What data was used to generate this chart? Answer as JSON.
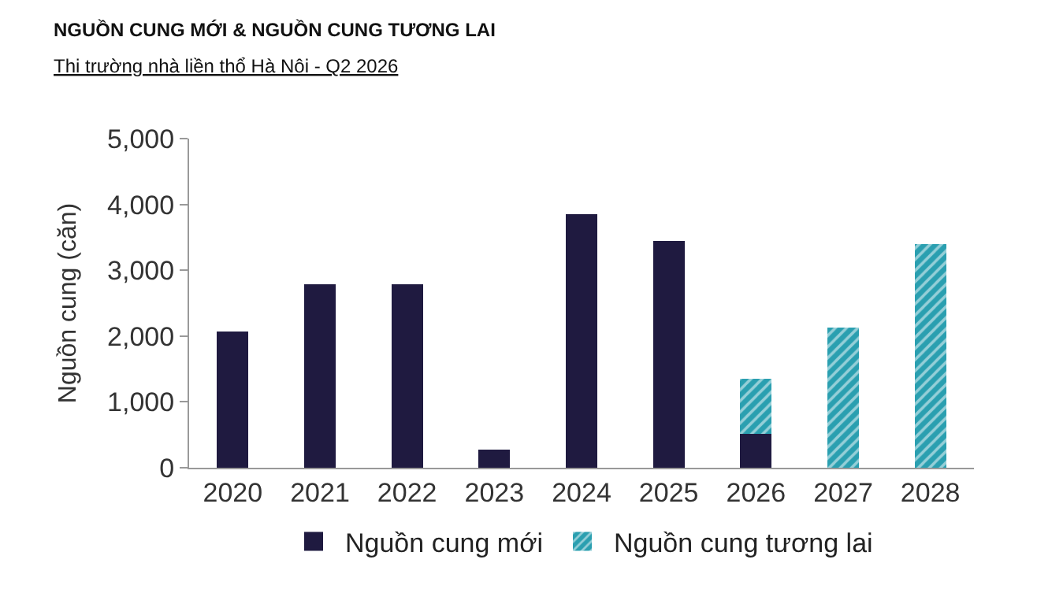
{
  "chart_data": {
    "type": "bar",
    "title": "NGUỒN CUNG MỚI & NGUỒN CUNG TƯƠNG LAI",
    "subtitle": "Thi trường nhà liền thổ Hà Nôi - Q2 2026",
    "ylabel": "Nguồn cung (căn)",
    "categories": [
      "2020",
      "2021",
      "2022",
      "2023",
      "2024",
      "2025",
      "2026",
      "2027",
      "2028"
    ],
    "stacked": true,
    "series": [
      {
        "name": "Nguồn cung mới",
        "color": "#1f1a40",
        "values": [
          2070,
          2790,
          2790,
          280,
          3850,
          3450,
          510,
          null,
          null
        ]
      },
      {
        "name": "Nguồn cung tương lai",
        "color": "#2a9fb0",
        "values": [
          null,
          null,
          null,
          null,
          null,
          null,
          840,
          2130,
          3400
        ]
      }
    ],
    "ylim": [
      0,
      5000
    ],
    "yticks": [
      {
        "value": 0,
        "label": "0"
      },
      {
        "value": 1000,
        "label": "1,000"
      },
      {
        "value": 2000,
        "label": "2,000"
      },
      {
        "value": 3000,
        "label": "3,000"
      },
      {
        "value": 4000,
        "label": "4,000"
      },
      {
        "value": 5000,
        "label": "5,000"
      }
    ],
    "legend": "bottom"
  }
}
